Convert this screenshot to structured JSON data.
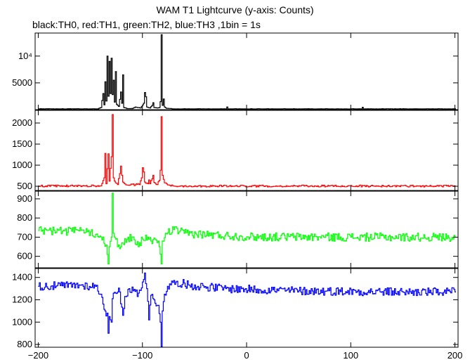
{
  "title": "WAM T1 Lightcurve (y-axis: Counts)",
  "subtitle": "black:TH0, red:TH1, green:TH2, blue:TH3 ,1bin = 1s",
  "chart_data": {
    "type": "line",
    "title": "WAM T1 Lightcurve (y-axis: Counts)",
    "xlim": [
      -203,
      203
    ],
    "x_ticks": [
      -200,
      -100,
      0,
      100,
      200
    ],
    "x_tick_labels": [
      "−200",
      "−100",
      "0",
      "100",
      "200"
    ],
    "panels": [
      {
        "name": "TH0",
        "color": "#000000",
        "ylim": [
          0,
          14300
        ],
        "y_ticks": [
          5000,
          10000
        ],
        "y_tick_labels": [
          "5000",
          "10⁴"
        ],
        "baseline": 150,
        "noise": 30,
        "series": [
          [
            -200,
            150
          ],
          [
            -143,
            150
          ],
          [
            -140,
            400
          ],
          [
            -138,
            3000
          ],
          [
            -137,
            900
          ],
          [
            -136,
            5200
          ],
          [
            -135,
            1600
          ],
          [
            -134,
            10000
          ],
          [
            -133,
            2500
          ],
          [
            -132,
            9000
          ],
          [
            -131,
            3000
          ],
          [
            -130,
            9600
          ],
          [
            -129,
            2800
          ],
          [
            -128,
            5500
          ],
          [
            -127,
            1400
          ],
          [
            -126,
            7100
          ],
          [
            -125,
            1000
          ],
          [
            -123,
            600
          ],
          [
            -121,
            3300
          ],
          [
            -120,
            1200
          ],
          [
            -119,
            6500
          ],
          [
            -118,
            400
          ],
          [
            -115,
            200
          ],
          [
            -110,
            200
          ],
          [
            -107,
            500
          ],
          [
            -105,
            400
          ],
          [
            -102,
            300
          ],
          [
            -99,
            1200
          ],
          [
            -98,
            3200
          ],
          [
            -97,
            2400
          ],
          [
            -96,
            500
          ],
          [
            -93,
            300
          ],
          [
            -91,
            800
          ],
          [
            -90,
            1300
          ],
          [
            -89,
            400
          ],
          [
            -86,
            300
          ],
          [
            -84,
            400
          ],
          [
            -83,
            1500
          ],
          [
            -82,
            14000
          ],
          [
            -81,
            800
          ],
          [
            -80,
            2000
          ],
          [
            -79,
            500
          ],
          [
            -77,
            250
          ],
          [
            -70,
            150
          ],
          [
            -20,
            150
          ],
          [
            -19,
            500
          ],
          [
            -18,
            150
          ],
          [
            110,
            150
          ],
          [
            111,
            450
          ],
          [
            112,
            150
          ],
          [
            200,
            150
          ]
        ]
      },
      {
        "name": "TH1",
        "color": "#ff0000",
        "ylim": [
          400,
          2300
        ],
        "y_ticks": [
          500,
          1000,
          1500,
          2000
        ],
        "y_tick_labels": [
          "500",
          "1000",
          "1500",
          "2000"
        ],
        "baseline": 505,
        "noise": 22,
        "series": [
          [
            -200,
            505
          ],
          [
            -140,
            510
          ],
          [
            -137,
            700
          ],
          [
            -136,
            1280
          ],
          [
            -135,
            560
          ],
          [
            -133,
            1270
          ],
          [
            -132,
            620
          ],
          [
            -130,
            1200
          ],
          [
            -129,
            2200
          ],
          [
            -128,
            700
          ],
          [
            -126,
            580
          ],
          [
            -124,
            540
          ],
          [
            -122,
            800
          ],
          [
            -121,
            980
          ],
          [
            -120,
            760
          ],
          [
            -119,
            600
          ],
          [
            -115,
            530
          ],
          [
            -103,
            540
          ],
          [
            -101,
            700
          ],
          [
            -100,
            940
          ],
          [
            -99,
            840
          ],
          [
            -98,
            600
          ],
          [
            -95,
            560
          ],
          [
            -94,
            650
          ],
          [
            -93,
            560
          ],
          [
            -90,
            760
          ],
          [
            -89,
            590
          ],
          [
            -86,
            540
          ],
          [
            -84,
            640
          ],
          [
            -83,
            880
          ],
          [
            -82,
            2150
          ],
          [
            -81,
            760
          ],
          [
            -79,
            580
          ],
          [
            -76,
            530
          ],
          [
            -70,
            505
          ],
          [
            200,
            505
          ]
        ]
      },
      {
        "name": "TH2",
        "color": "#00ff00",
        "ylim": [
          540,
          940
        ],
        "y_ticks": [
          600,
          700,
          800,
          900
        ],
        "y_tick_labels": [
          "600",
          "700",
          "800",
          "900"
        ],
        "baseline": 700,
        "noise": 22,
        "series": [
          [
            -200,
            735
          ],
          [
            -150,
            728
          ],
          [
            -138,
            700
          ],
          [
            -135,
            660
          ],
          [
            -133,
            560
          ],
          [
            -132,
            650
          ],
          [
            -130,
            700
          ],
          [
            -129,
            930
          ],
          [
            -128,
            720
          ],
          [
            -126,
            690
          ],
          [
            -124,
            650
          ],
          [
            -122,
            640
          ],
          [
            -120,
            670
          ],
          [
            -115,
            690
          ],
          [
            -110,
            700
          ],
          [
            -106,
            660
          ],
          [
            -104,
            650
          ],
          [
            -100,
            690
          ],
          [
            -95,
            700
          ],
          [
            -92,
            680
          ],
          [
            -88,
            690
          ],
          [
            -84,
            650
          ],
          [
            -82,
            560
          ],
          [
            -81,
            680
          ],
          [
            -78,
            720
          ],
          [
            -70,
            740
          ],
          [
            -60,
            720
          ],
          [
            0,
            702
          ],
          [
            100,
            700
          ],
          [
            200,
            700
          ]
        ]
      },
      {
        "name": "TH3",
        "color": "#0000ff",
        "ylim": [
          775,
          1480
        ],
        "y_ticks": [
          800,
          1000,
          1200,
          1400
        ],
        "y_tick_labels": [
          "800",
          "1000",
          "1200",
          "1400"
        ],
        "baseline": 1280,
        "noise": 38,
        "series": [
          [
            -200,
            1320
          ],
          [
            -160,
            1330
          ],
          [
            -145,
            1320
          ],
          [
            -140,
            1250
          ],
          [
            -136,
            1100
          ],
          [
            -134,
            1080
          ],
          [
            -133,
            900
          ],
          [
            -132,
            1050
          ],
          [
            -130,
            1000
          ],
          [
            -129,
            1210
          ],
          [
            -126,
            1260
          ],
          [
            -122,
            1270
          ],
          [
            -119,
            1060
          ],
          [
            -117,
            1230
          ],
          [
            -113,
            1300
          ],
          [
            -109,
            1280
          ],
          [
            -104,
            1260
          ],
          [
            -100,
            1360
          ],
          [
            -98,
            1440
          ],
          [
            -96,
            1300
          ],
          [
            -94,
            1020
          ],
          [
            -92,
            1240
          ],
          [
            -89,
            1200
          ],
          [
            -85,
            1150
          ],
          [
            -83,
            1000
          ],
          [
            -82,
            780
          ],
          [
            -81,
            1100
          ],
          [
            -79,
            1250
          ],
          [
            -76,
            1320
          ],
          [
            -68,
            1360
          ],
          [
            -55,
            1330
          ],
          [
            -20,
            1300
          ],
          [
            50,
            1280
          ],
          [
            150,
            1270
          ],
          [
            200,
            1270
          ]
        ]
      }
    ]
  }
}
